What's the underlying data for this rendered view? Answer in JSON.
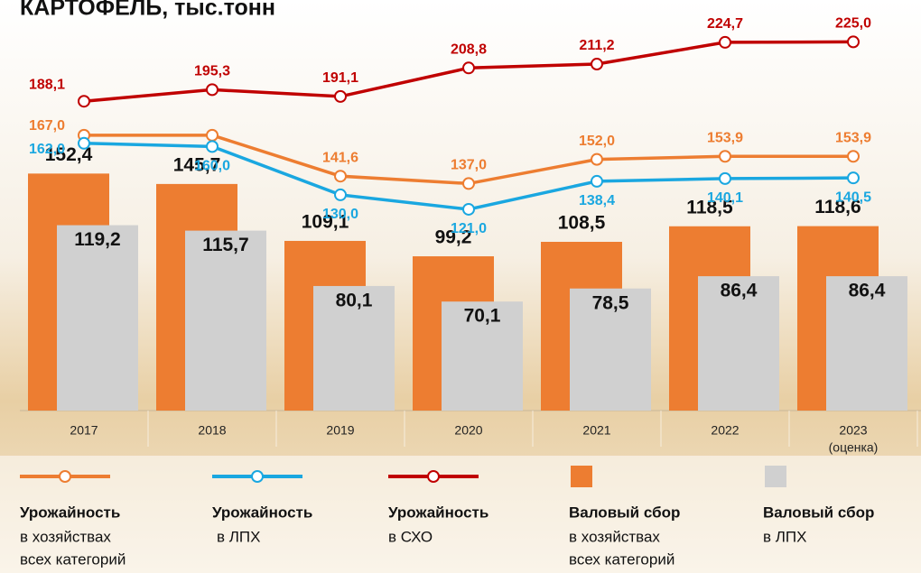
{
  "chart_data": {
    "type": "combo",
    "title": "КАРТОФЕЛЬ, тыс.тонн",
    "categories": [
      "2017",
      "2018",
      "2019",
      "2020",
      "2021",
      "2022",
      "2023"
    ],
    "category_note": "(оценка)",
    "ylim": [
      0,
      264
    ],
    "y2lim": [
      -4,
      251
    ],
    "series": [
      {
        "type": "line",
        "axis": "y2",
        "name": "Урожайность",
        "name_lines": [
          "в хозяйствах",
          "всех категорий"
        ],
        "color": "#ed7d31",
        "values": [
          167.0,
          167.0,
          141.6,
          137.0,
          152.0,
          153.9,
          153.9
        ],
        "value_labels": [
          "167,0",
          "",
          "141,6",
          "137,0",
          "152,0",
          "153,9",
          "153,9"
        ]
      },
      {
        "type": "line",
        "axis": "y2",
        "name": "Урожайность",
        "name_lines": [
          "в ЛПХ"
        ],
        "color": "#1aa7e0",
        "values": [
          162.0,
          160.0,
          130.0,
          121.0,
          138.4,
          140.1,
          140.5
        ],
        "value_labels": [
          "162,0",
          "160,0",
          "130,0",
          "121,0",
          "138,4",
          "140,1",
          "140,5"
        ]
      },
      {
        "type": "line",
        "axis": "y2",
        "name": "Урожайность",
        "name_lines": [
          "в СХО"
        ],
        "color": "#c00000",
        "values": [
          188.1,
          195.3,
          191.1,
          208.8,
          211.2,
          224.7,
          225.0
        ],
        "value_labels": [
          "188,1",
          "195,3",
          "191,1",
          "208,8",
          "211,2",
          "224,7",
          "225,0"
        ]
      },
      {
        "type": "bar",
        "name": "Валовый сбор",
        "name_lines": [
          "в хозяйствах",
          "всех категорий"
        ],
        "color": "#ed7d31",
        "values": [
          152.4,
          145.7,
          109.1,
          99.2,
          108.5,
          118.5,
          118.6
        ],
        "value_labels": [
          "152,4",
          "145,7",
          "109,1",
          "99,2",
          "108,5",
          "118,5",
          "118,6"
        ]
      },
      {
        "type": "bar",
        "name": "Валовый сбор",
        "name_lines": [
          "в ЛПХ"
        ],
        "color": "#d0d0d0",
        "values": [
          119.2,
          115.7,
          80.1,
          70.1,
          78.5,
          86.4,
          86.4
        ],
        "value_labels": [
          "119,2",
          "115,7",
          "80,1",
          "70,1",
          "78,5",
          "86,4",
          "86,4"
        ]
      }
    ]
  }
}
